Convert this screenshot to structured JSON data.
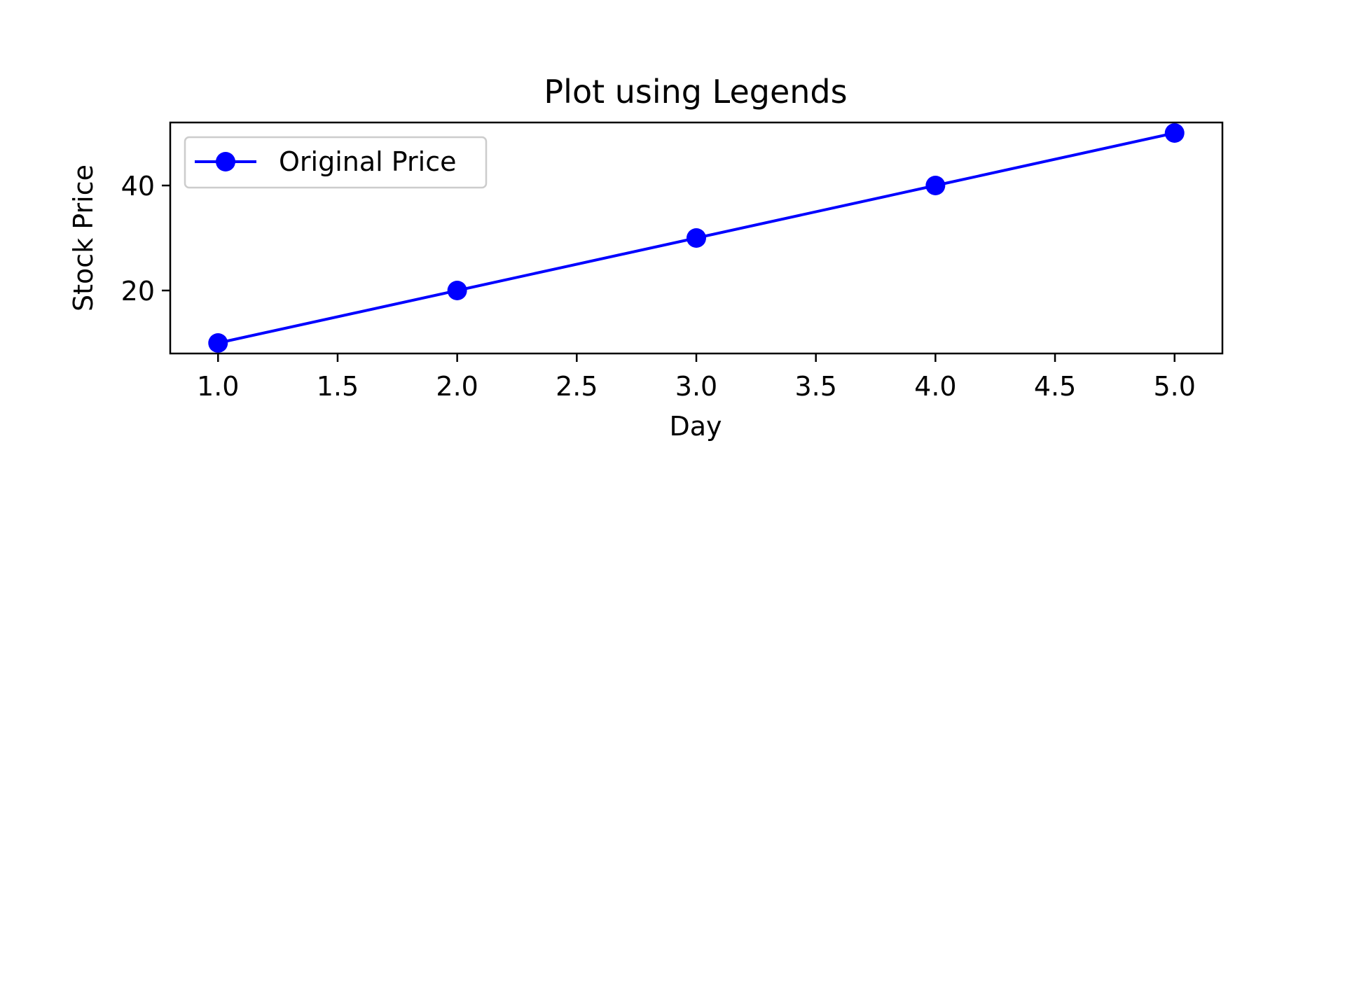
{
  "chart_data": {
    "type": "line",
    "title": "Plot using Legends",
    "xlabel": "Day",
    "ylabel": "Stock Price",
    "xlim": [
      0.8,
      5.2
    ],
    "ylim": [
      8,
      52
    ],
    "xticks": [
      "1.0",
      "1.5",
      "2.0",
      "2.5",
      "3.0",
      "3.5",
      "4.0",
      "4.5",
      "5.0"
    ],
    "xtick_values": [
      1.0,
      1.5,
      2.0,
      2.5,
      3.0,
      3.5,
      4.0,
      4.5,
      5.0
    ],
    "yticks": [
      "20",
      "40"
    ],
    "ytick_values": [
      20,
      40
    ],
    "grid": false,
    "legend_position": "upper-left",
    "series": [
      {
        "name": "Original Price",
        "color": "#0000ff",
        "marker": "circle",
        "x": [
          1,
          2,
          3,
          4,
          5
        ],
        "y": [
          10,
          20,
          30,
          40,
          50
        ]
      }
    ]
  }
}
